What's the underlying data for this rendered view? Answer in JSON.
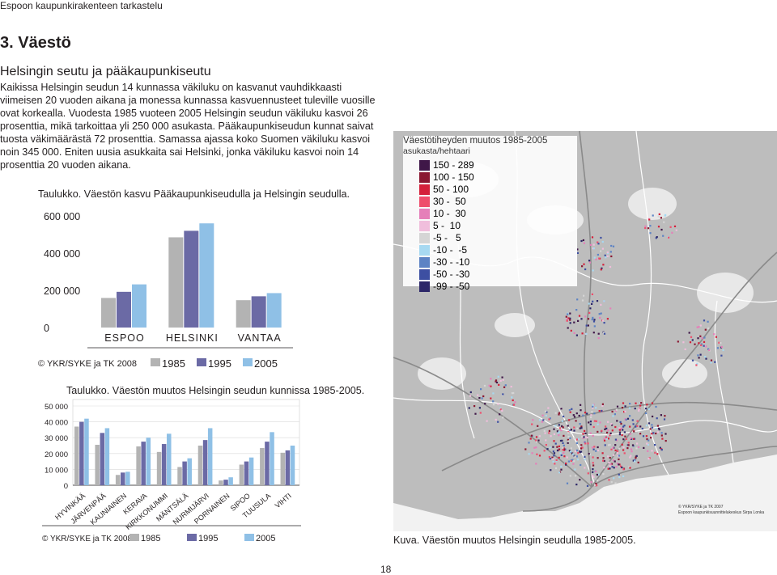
{
  "header": {
    "title": "Espoon kaupunkirakenteen tarkastelu"
  },
  "section": {
    "title": "3. Väestö",
    "subtitle": "Helsingin seutu ja pääkaupunkiseutu"
  },
  "body_text": "Kaikissa Helsingin seudun 14 kunnassa väkiluku on kasvanut vauhdikkaasti viimeisen 20 vuoden aikana ja monessa kunnassa kasvuennusteet tuleville vuosille ovat korkealla. Vuodesta 1985 vuoteen 2005 Helsingin seudun väkiluku kasvoi 26 prosenttia, mikä tarkoittaa yli 250 000 asukasta. Pääkaupunkiseudun kunnat saivat tuosta väkimäärästä 72 prosenttia. Samassa ajassa koko Suomen väkiluku kasvoi noin 345 000. Eniten uusia asukkaita sai Helsinki, jonka väkiluku kasvoi noin 14 prosenttia 20 vuoden aikana.",
  "chart_data": [
    {
      "type": "bar",
      "caption": "Taulukko. Väestön kasvu Pääkaupunkiseudulla ja Helsingin seudulla.",
      "categories": [
        "ESPOO",
        "HELSINKI",
        "VANTAA"
      ],
      "series": [
        {
          "name": "1985",
          "color": "#b3b3b3",
          "values": [
            159000,
            485000,
            147000
          ]
        },
        {
          "name": "1995",
          "color": "#6b6aa5",
          "values": [
            192000,
            520000,
            168000
          ]
        },
        {
          "name": "2005",
          "color": "#8fc0e6",
          "values": [
            232000,
            560000,
            185000
          ]
        }
      ],
      "yticks": [
        "600 000",
        "400 000",
        "200 000",
        "0"
      ],
      "ylim": [
        0,
        600000
      ],
      "source": "© YKR/SYKE ja TK 2008",
      "legend_position": "bottom",
      "grid": false
    },
    {
      "type": "bar",
      "caption": "Taulukko. Väestön muutos Helsingin seudun kunnissa 1985-2005.",
      "categories": [
        "HYVINKÄÄ",
        "JÄRVENPÄÄ",
        "KAUNIAINEN",
        "KERAVA",
        "KIRKKONUMMI",
        "MÄNTSÄLÄ",
        "NURMIJÄRVI",
        "PORNAINEN",
        "SIPOO",
        "TUUSULA",
        "VIHTI"
      ],
      "series": [
        {
          "name": "1985",
          "color": "#b3b3b3",
          "values": [
            37000,
            25500,
            6500,
            24500,
            21000,
            11500,
            25000,
            3000,
            13000,
            23500,
            20500
          ]
        },
        {
          "name": "1995",
          "color": "#6b6aa5",
          "values": [
            40000,
            33000,
            8000,
            27500,
            26000,
            15000,
            28500,
            3500,
            15000,
            27500,
            22000
          ]
        },
        {
          "name": "2005",
          "color": "#8fc0e6",
          "values": [
            42000,
            36000,
            8500,
            30000,
            32500,
            17000,
            36000,
            5000,
            17500,
            33500,
            25000
          ]
        }
      ],
      "yticks": [
        "50 000",
        "40 000",
        "30 000",
        "20 000",
        "10 000",
        "0"
      ],
      "ylim": [
        0,
        50000
      ],
      "source": "© YKR/SYKE ja TK 2008",
      "legend_position": "bottom",
      "grid": true
    }
  ],
  "map": {
    "caption": "Kuva. Väestön muutos Helsingin seudulla 1985-2005.",
    "legend_title": "Väestötiheyden muutos 1985-2005",
    "legend_unit": "asukasta/hehtaari",
    "classes": [
      {
        "label": "150 - 289",
        "color": "#3f1748"
      },
      {
        "label": "100 - 150",
        "color": "#8a1731"
      },
      {
        "label": "50 - 100",
        "color": "#d4203a"
      },
      {
        "label": "30 -  50",
        "color": "#ee4e6c"
      },
      {
        "label": "10 -  30",
        "color": "#e57fb9"
      },
      {
        "label": "5 -  10",
        "color": "#f0bedc"
      },
      {
        "label": "-5 -   5",
        "color": "#d5d5d5"
      },
      {
        "label": "-10 -  -5",
        "color": "#a7d9f1"
      },
      {
        "label": "-30 - -10",
        "color": "#5d83c4"
      },
      {
        "label": "-50 - -30",
        "color": "#3d4fa2"
      },
      {
        "label": "-99 - -50",
        "color": "#2c2768"
      }
    ],
    "credit_line1": "© YKR/SYKE ja TK 2007",
    "credit_line2": "Espoon kaupunkisuunnittelukeskus Sirpa Lonka"
  },
  "page_number": "18"
}
